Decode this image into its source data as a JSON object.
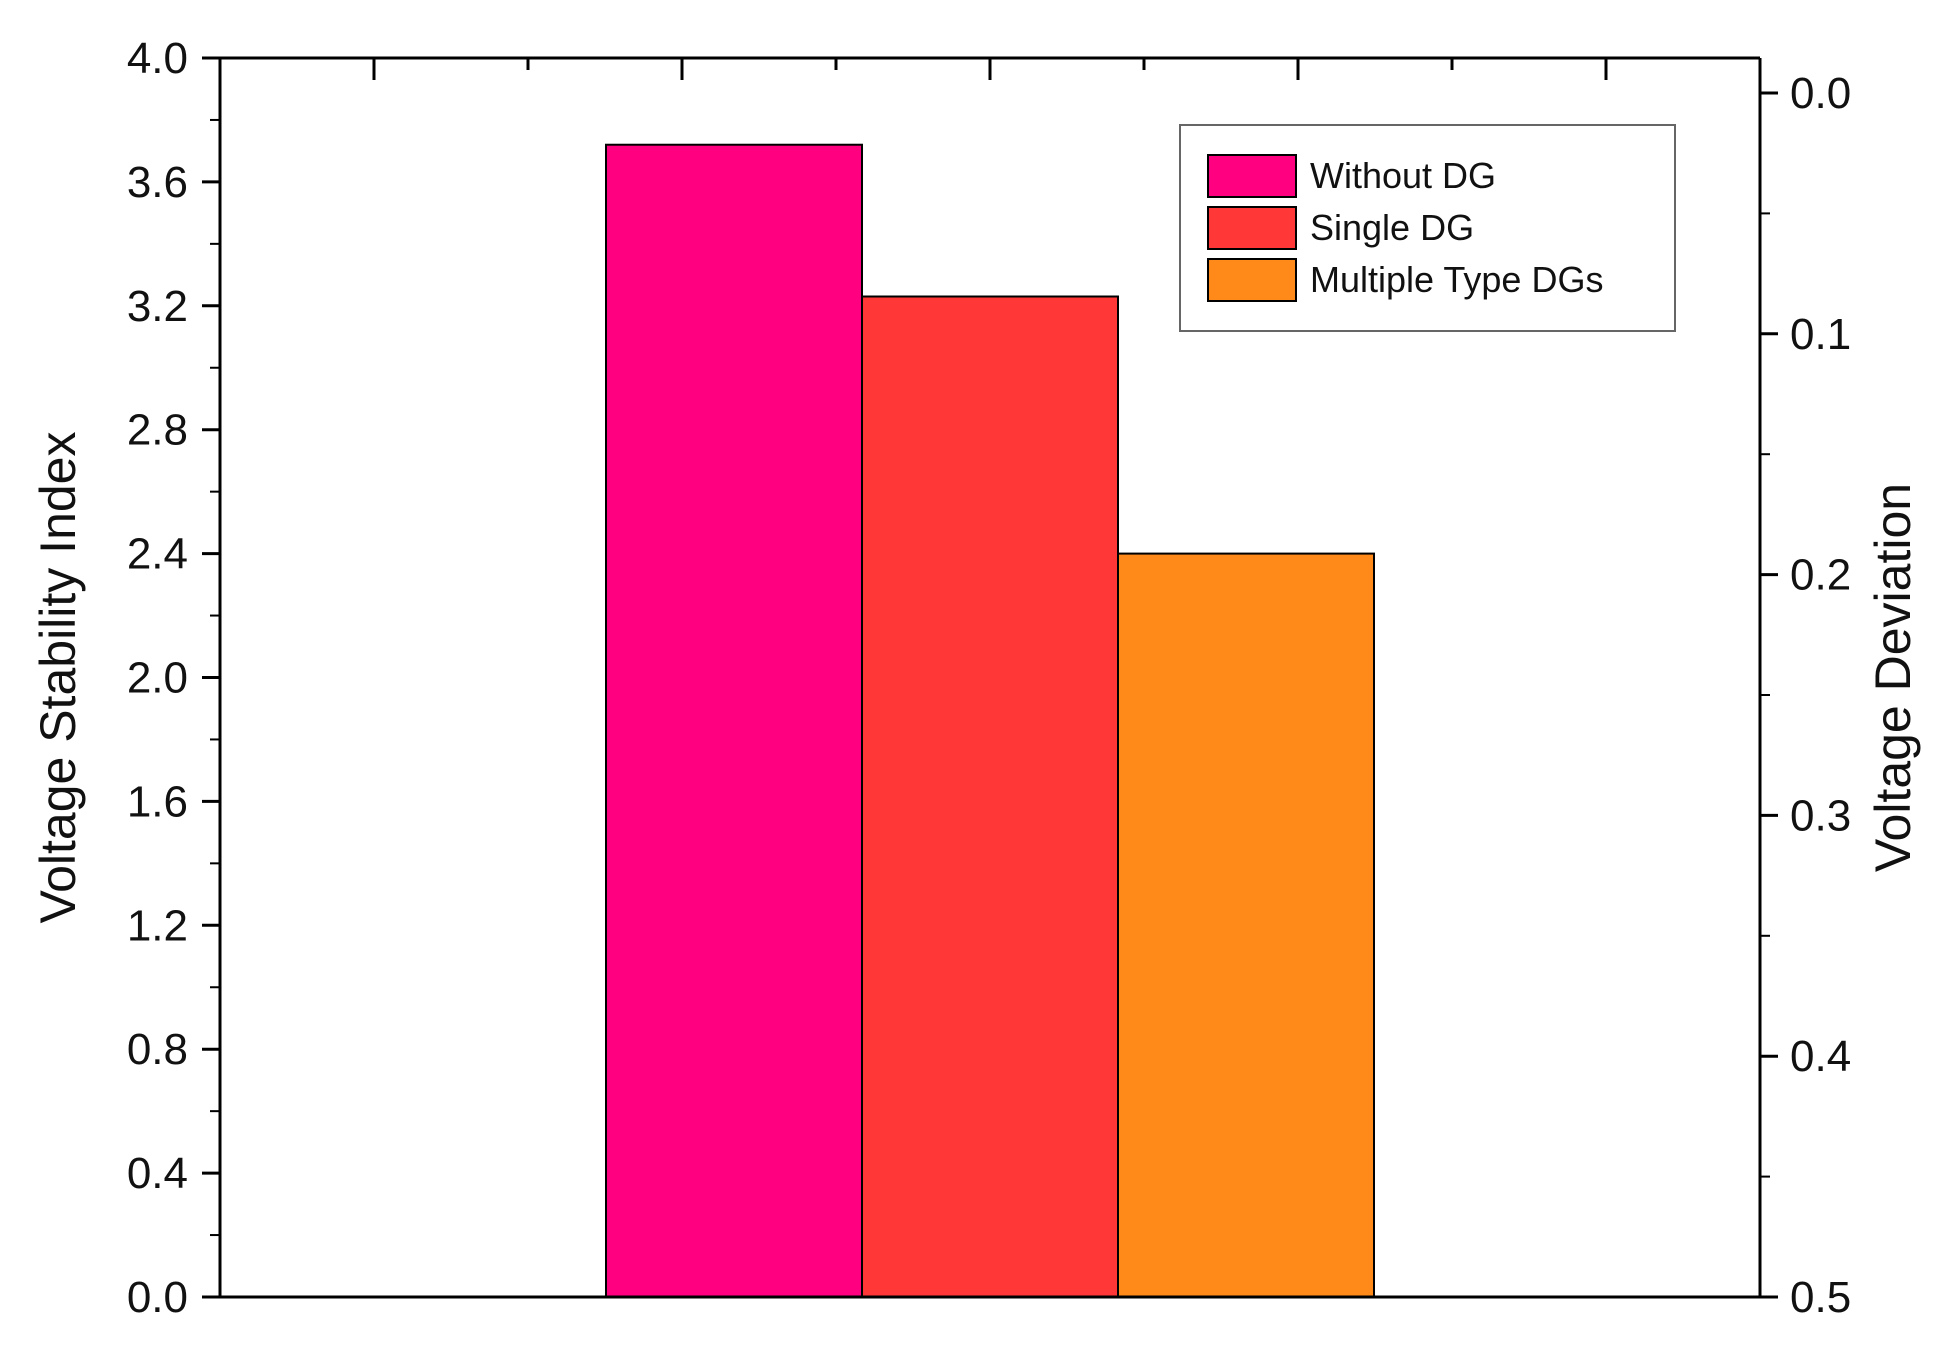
{
  "chart_data": {
    "type": "bar",
    "title": "",
    "xlabel": "",
    "ylabel": "Voltage Stability Index",
    "y2label": "Voltage Deviation",
    "ylim": [
      0,
      4.0
    ],
    "y2lim": [
      0.5,
      0.0
    ],
    "y2_inverted": true,
    "yticks": [
      "0.0",
      "0.4",
      "0.8",
      "1.2",
      "1.6",
      "2.0",
      "2.4",
      "2.8",
      "3.2",
      "3.6",
      "4.0"
    ],
    "y2ticks": [
      "0.0",
      "0.1",
      "0.2",
      "0.3",
      "0.4",
      "0.5"
    ],
    "grid": false,
    "legend_position": "top-right",
    "series": [
      {
        "name": "Without DG",
        "value": 3.72,
        "color": "#FF0080"
      },
      {
        "name": "Single DG",
        "value": 3.23,
        "color": "#FF3737"
      },
      {
        "name": "Multiple Type DGs",
        "value": 2.4,
        "color": "#FF8A1A"
      }
    ]
  }
}
